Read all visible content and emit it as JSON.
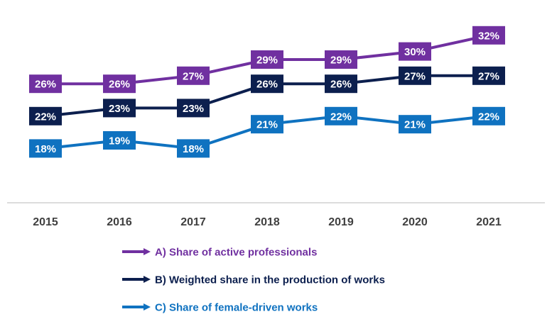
{
  "chart_data": {
    "type": "line",
    "title": "",
    "xlabel": "",
    "ylabel": "",
    "x": [
      "2015",
      "2016",
      "2017",
      "2018",
      "2019",
      "2020",
      "2021"
    ],
    "value_suffix": "%",
    "ylim": [
      14,
      34
    ],
    "grid": false,
    "legend_position": "bottom",
    "series": [
      {
        "name": "A) Share of active professionals",
        "color": "#7030a0",
        "values": [
          26,
          26,
          27,
          29,
          29,
          30,
          32
        ]
      },
      {
        "name": "B) Weighted share in the production of works",
        "color": "#0c1f4e",
        "values": [
          22,
          23,
          23,
          26,
          26,
          27,
          27
        ]
      },
      {
        "name": "C) Share of female-driven works",
        "color": "#0f72c0",
        "values": [
          18,
          19,
          18,
          21,
          22,
          21,
          22
        ]
      }
    ]
  }
}
